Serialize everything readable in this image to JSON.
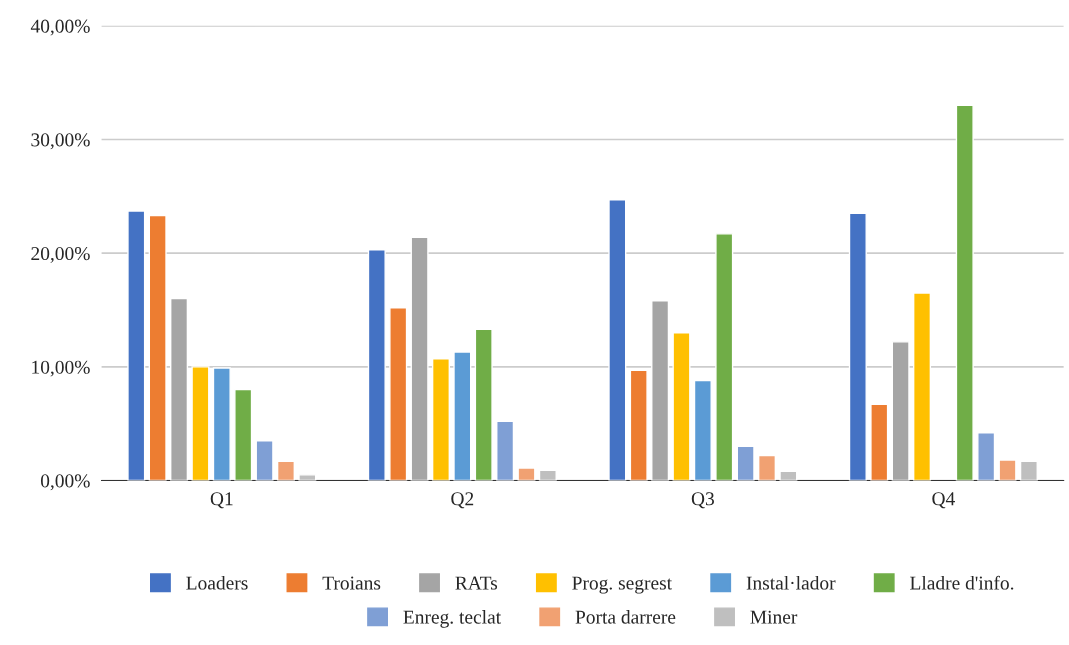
{
  "chart_data": {
    "type": "bar",
    "categories": [
      "Q1",
      "Q2",
      "Q3",
      "Q4"
    ],
    "series": [
      {
        "name": "Loaders",
        "color": "#4472c4",
        "values": [
          23.7,
          20.3,
          24.7,
          23.5
        ]
      },
      {
        "name": "Troians",
        "color": "#ed7d31",
        "values": [
          23.3,
          15.2,
          9.7,
          6.7
        ]
      },
      {
        "name": "RATs",
        "color": "#a5a5a5",
        "values": [
          16.0,
          21.4,
          15.8,
          12.2
        ]
      },
      {
        "name": "Prog. segrest",
        "color": "#ffc000",
        "values": [
          10.0,
          10.7,
          13.0,
          16.5
        ]
      },
      {
        "name": "Instal·lador",
        "color": "#5b9bd5",
        "values": [
          9.9,
          11.3,
          8.8,
          null
        ]
      },
      {
        "name": "Lladre d'info.",
        "color": "#70ad47",
        "values": [
          8.0,
          13.3,
          21.7,
          33.0
        ]
      },
      {
        "name": "Enreg. teclat",
        "color": "#7f9fd5",
        "values": [
          3.5,
          5.2,
          3.0,
          4.2
        ]
      },
      {
        "name": "Porta darrere",
        "color": "#f1a172",
        "values": [
          1.7,
          1.1,
          2.2,
          1.8
        ]
      },
      {
        "name": "Miner",
        "color": "#bfbfbf",
        "values": [
          0.5,
          0.9,
          0.8,
          1.7
        ]
      }
    ],
    "ylim": [
      0,
      40
    ],
    "yticks": [
      {
        "value": 0,
        "label": "0,00%"
      },
      {
        "value": 10,
        "label": "10,00%"
      },
      {
        "value": 20,
        "label": "20,00%"
      },
      {
        "value": 30,
        "label": "30,00%"
      },
      {
        "value": 40,
        "label": "40,00%"
      }
    ],
    "grid": "y",
    "legend": "bottom"
  }
}
